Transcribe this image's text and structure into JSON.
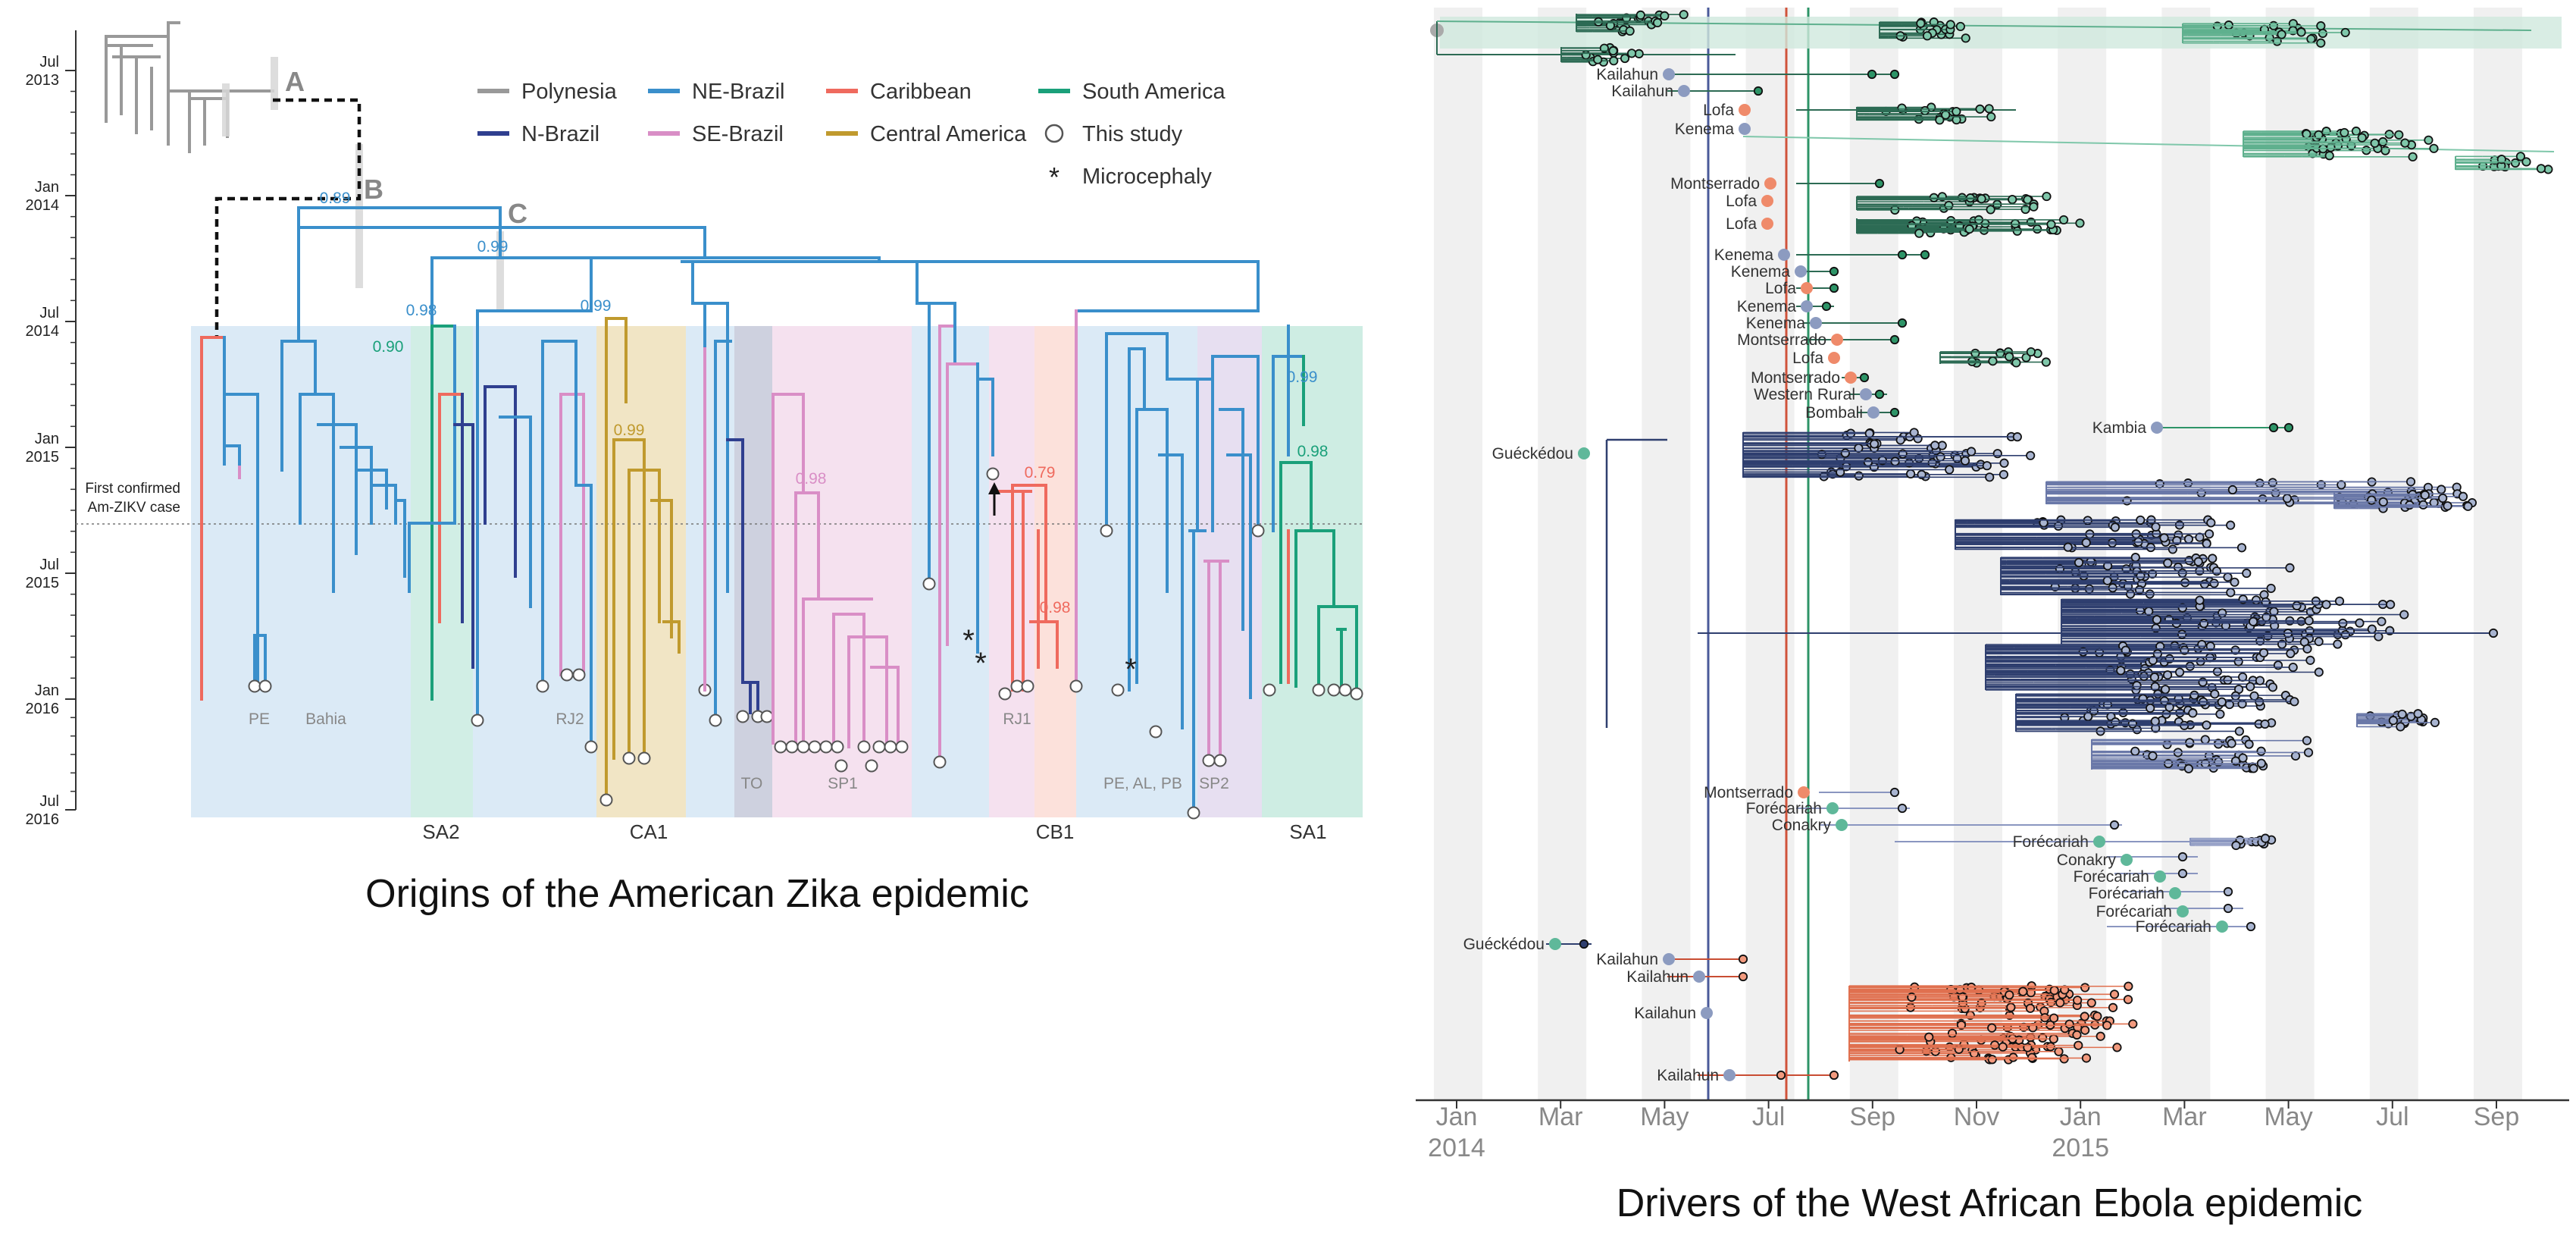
{
  "zika": {
    "title": "Origins of the American Zika epidemic",
    "time_axis": [
      {
        "month": "Jul",
        "year": "2013"
      },
      {
        "month": "Jan",
        "year": "2014"
      },
      {
        "month": "Jul",
        "year": "2014"
      },
      {
        "month": "Jan",
        "year": "2015"
      },
      {
        "month": "Jul",
        "year": "2015"
      },
      {
        "month": "Jan",
        "year": "2016"
      },
      {
        "month": "Jul",
        "year": "2016"
      }
    ],
    "first_case_line1": "First confirmed",
    "first_case_line2": "Am-ZIKV case",
    "node_letters": [
      "A",
      "B",
      "C"
    ],
    "legend": [
      {
        "label": "Polynesia",
        "color": "#999999",
        "kind": "line"
      },
      {
        "label": "NE-Brazil",
        "color": "#3a8fcb",
        "kind": "line"
      },
      {
        "label": "Caribbean",
        "color": "#ef6a5e",
        "kind": "line"
      },
      {
        "label": "South America",
        "color": "#1aa07a",
        "kind": "line"
      },
      {
        "label": "N-Brazil",
        "color": "#2f3f8f",
        "kind": "line"
      },
      {
        "label": "SE-Brazil",
        "color": "#d98ec6",
        "kind": "line"
      },
      {
        "label": "Central America",
        "color": "#c09a2e",
        "kind": "line"
      },
      {
        "label": "This study",
        "color": "#555555",
        "kind": "circle"
      },
      {
        "label": "Microcephaly",
        "color": "#111111",
        "kind": "star"
      }
    ],
    "support_values": [
      {
        "value": "0.89",
        "color": "#3a8fcb"
      },
      {
        "value": "0.99",
        "color": "#3a8fcb"
      },
      {
        "value": "0.98",
        "color": "#3a8fcb"
      },
      {
        "value": "0.90",
        "color": "#1aa07a"
      },
      {
        "value": "0.99",
        "color": "#3a8fcb"
      },
      {
        "value": "0.99",
        "color": "#c09a2e"
      },
      {
        "value": "0.98",
        "color": "#d98ec6"
      },
      {
        "value": "0.79",
        "color": "#ef6a5e"
      },
      {
        "value": "0.98",
        "color": "#ef6a5e"
      },
      {
        "value": "0.99",
        "color": "#3a8fcb"
      },
      {
        "value": "0.98",
        "color": "#1aa07a"
      }
    ],
    "region_labels": [
      "PE",
      "Bahia",
      "RJ2",
      "TO",
      "SP1",
      "RJ1",
      "PE, AL, PB",
      "SP2"
    ],
    "clade_labels": [
      "SA2",
      "CA1",
      "CB1",
      "SA1"
    ]
  },
  "ebola": {
    "title": "Drivers of the West African Ebola epidemic",
    "months": [
      "Jan",
      "Mar",
      "May",
      "Jul",
      "Sep",
      "Nov",
      "Jan",
      "Mar",
      "May",
      "Jul",
      "Sep"
    ],
    "years": [
      "2014",
      "2015"
    ],
    "colors": {
      "sierra_leone": "#3d8b6e",
      "guinea": "#2f3f6f",
      "liberia": "#e0704f",
      "sl_light": "#7fc7aa",
      "gn_light": "#a8b4d0",
      "lb_light": "#f29a7e"
    },
    "locations": [
      {
        "name": "Kailahun",
        "country": "guinea_src"
      },
      {
        "name": "Kailahun",
        "country": "guinea_src"
      },
      {
        "name": "Lofa",
        "country": "liberia"
      },
      {
        "name": "Kenema",
        "country": "guinea_src"
      },
      {
        "name": "Montserrado",
        "country": "liberia"
      },
      {
        "name": "Lofa",
        "country": "liberia"
      },
      {
        "name": "Lofa",
        "country": "liberia"
      },
      {
        "name": "Kenema",
        "country": "guinea_src"
      },
      {
        "name": "Kenema",
        "country": "guinea_src"
      },
      {
        "name": "Lofa",
        "country": "liberia"
      },
      {
        "name": "Kenema",
        "country": "guinea_src"
      },
      {
        "name": "Kenema",
        "country": "guinea_src"
      },
      {
        "name": "Montserrado",
        "country": "liberia"
      },
      {
        "name": "Lofa",
        "country": "liberia"
      },
      {
        "name": "Montserrado",
        "country": "liberia"
      },
      {
        "name": "Western Rural",
        "country": "guinea_src"
      },
      {
        "name": "Bombali",
        "country": "guinea_src"
      },
      {
        "name": "Kambia",
        "country": "guinea_src"
      },
      {
        "name": "Guéckédou",
        "country": "sierra"
      },
      {
        "name": "Montserrado",
        "country": "liberia"
      },
      {
        "name": "Forécariah",
        "country": "sierra"
      },
      {
        "name": "Conakry",
        "country": "sierra"
      },
      {
        "name": "Forécariah",
        "country": "sierra"
      },
      {
        "name": "Conakry",
        "country": "sierra"
      },
      {
        "name": "Forécariah",
        "country": "sierra"
      },
      {
        "name": "Forécariah",
        "country": "sierra"
      },
      {
        "name": "Forécariah",
        "country": "sierra"
      },
      {
        "name": "Forécariah",
        "country": "sierra"
      },
      {
        "name": "Guéckédou",
        "country": "sierra"
      },
      {
        "name": "Kailahun",
        "country": "guinea_src"
      },
      {
        "name": "Kailahun",
        "country": "guinea_src"
      },
      {
        "name": "Kailahun",
        "country": "guinea_src"
      },
      {
        "name": "Kailahun",
        "country": "guinea_src"
      }
    ]
  }
}
